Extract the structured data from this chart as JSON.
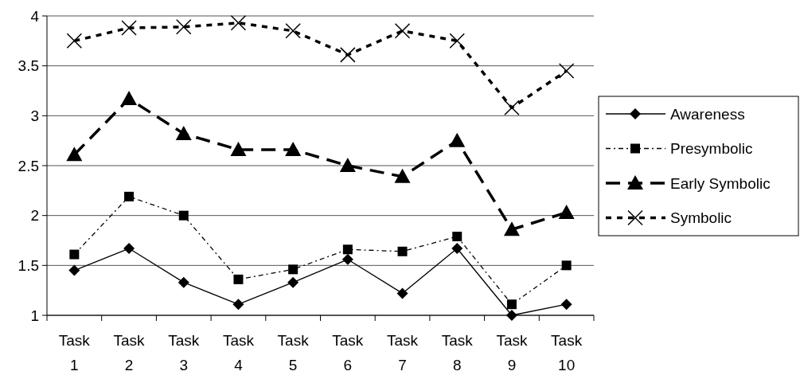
{
  "chart_data": {
    "type": "line",
    "categories": [
      "Task 1",
      "Task 2",
      "Task 3",
      "Task 4",
      "Task 5",
      "Task 6",
      "Task 7",
      "Task 8",
      "Task 9",
      "Task 10"
    ],
    "series": [
      {
        "name": "Awareness",
        "color": "#000000",
        "marker": "diamond",
        "line_style": "solid",
        "values": [
          1.45,
          1.67,
          1.33,
          1.11,
          1.33,
          1.56,
          1.22,
          1.67,
          1.0,
          1.11
        ]
      },
      {
        "name": "Presymbolic",
        "color": "#000000",
        "marker": "square",
        "line_style": "dotted",
        "values": [
          1.61,
          2.19,
          2.0,
          1.36,
          1.46,
          1.66,
          1.64,
          1.79,
          1.11,
          1.5
        ]
      },
      {
        "name": "Early Symbolic",
        "color": "#000000",
        "marker": "triangle",
        "line_style": "dashed",
        "values": [
          2.61,
          3.17,
          2.82,
          2.66,
          2.66,
          2.5,
          2.39,
          2.75,
          1.86,
          2.03
        ]
      },
      {
        "name": "Symbolic",
        "color": "#000000",
        "marker": "cross",
        "line_style": "dashed",
        "values": [
          3.75,
          3.88,
          3.89,
          3.93,
          3.85,
          3.61,
          3.85,
          3.75,
          3.08,
          3.45
        ]
      }
    ],
    "ylim": [
      1,
      4
    ],
    "yticks": [
      1,
      1.5,
      2,
      2.5,
      3,
      3.5,
      4
    ],
    "grid": "y",
    "legend": "right"
  }
}
